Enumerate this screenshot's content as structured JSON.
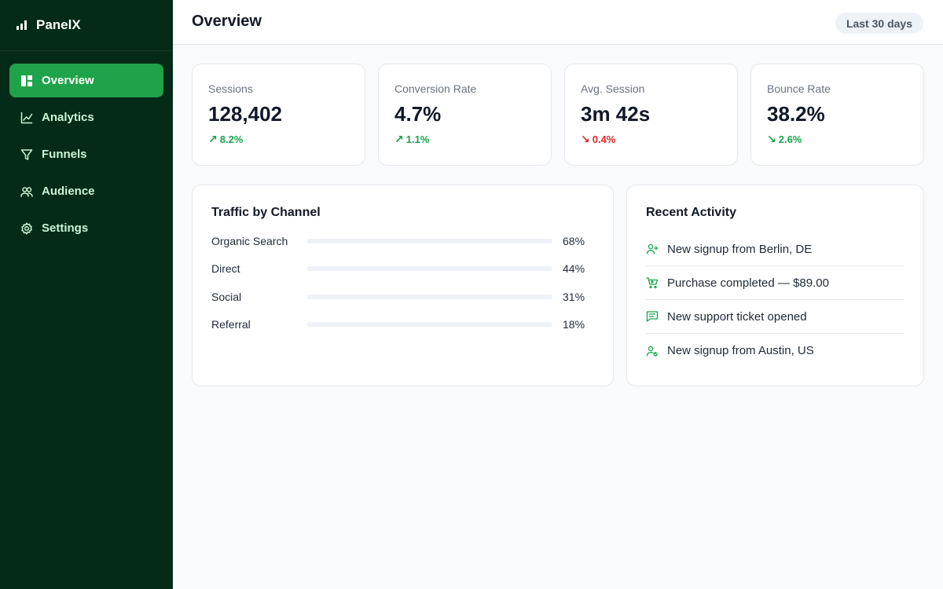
{
  "brand": {
    "name": "PanelX",
    "icon": "bar-chart-icon"
  },
  "sidebar": {
    "items": [
      {
        "label": "Overview",
        "icon": "dashboard-icon",
        "active": true
      },
      {
        "label": "Analytics",
        "icon": "line-chart-icon",
        "active": false
      },
      {
        "label": "Funnels",
        "icon": "funnel-icon",
        "active": false
      },
      {
        "label": "Audience",
        "icon": "users-icon",
        "active": false
      },
      {
        "label": "Settings",
        "icon": "gear-icon",
        "active": false
      }
    ]
  },
  "header": {
    "title": "Overview",
    "range": "Last 30 days"
  },
  "kpis": [
    {
      "label": "Sessions",
      "value": "128,402",
      "delta": "8.2%",
      "arrow": "↗",
      "trend": "up"
    },
    {
      "label": "Conversion Rate",
      "value": "4.7%",
      "delta": "1.1%",
      "arrow": "↗",
      "trend": "up"
    },
    {
      "label": "Avg. Session",
      "value": "3m 42s",
      "delta": "0.4%",
      "arrow": "↘",
      "trend": "down"
    },
    {
      "label": "Bounce Rate",
      "value": "38.2%",
      "delta": "2.6%",
      "arrow": "↘",
      "trend": "up"
    }
  ],
  "traffic": {
    "title": "Traffic by Channel",
    "channels": [
      {
        "name": "Organic Search",
        "pct": "68%",
        "value": 68
      },
      {
        "name": "Direct",
        "pct": "44%",
        "value": 44
      },
      {
        "name": "Social",
        "pct": "31%",
        "value": 31
      },
      {
        "name": "Referral",
        "pct": "18%",
        "value": 18
      }
    ]
  },
  "activity": {
    "title": "Recent Activity",
    "items": [
      {
        "text": "New signup from Berlin, DE",
        "icon": "user-plus-icon"
      },
      {
        "text": "Purchase completed — $89.00",
        "icon": "cart-icon"
      },
      {
        "text": "New support ticket opened",
        "icon": "message-icon"
      },
      {
        "text": "New signup from Austin, US",
        "icon": "user-check-icon"
      }
    ]
  },
  "colors": {
    "sidebar_bg": "#032b17",
    "accent": "#1fa34a",
    "up": "#16a34a",
    "down": "#dc2626"
  }
}
